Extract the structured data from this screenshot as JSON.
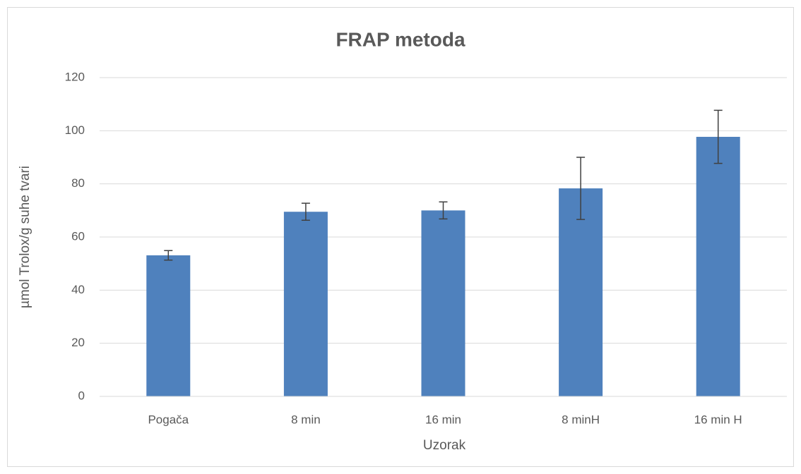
{
  "chart_data": {
    "type": "bar",
    "title": "FRAP metoda",
    "x_label": "Uzorak",
    "y_label": "µmol Trolox/g suhe tvari",
    "categories": [
      "Pogača",
      "8 min",
      "16 min",
      "8 minH",
      "16 min H"
    ],
    "values": [
      53.1,
      69.5,
      70.0,
      78.3,
      97.7
    ],
    "errors": [
      1.8,
      3.2,
      3.2,
      11.7,
      10.0
    ],
    "color": "#4f81bd",
    "ylim": [
      0,
      120
    ],
    "yticks": [
      0,
      20,
      40,
      60,
      80,
      100,
      120
    ],
    "grid": true
  }
}
